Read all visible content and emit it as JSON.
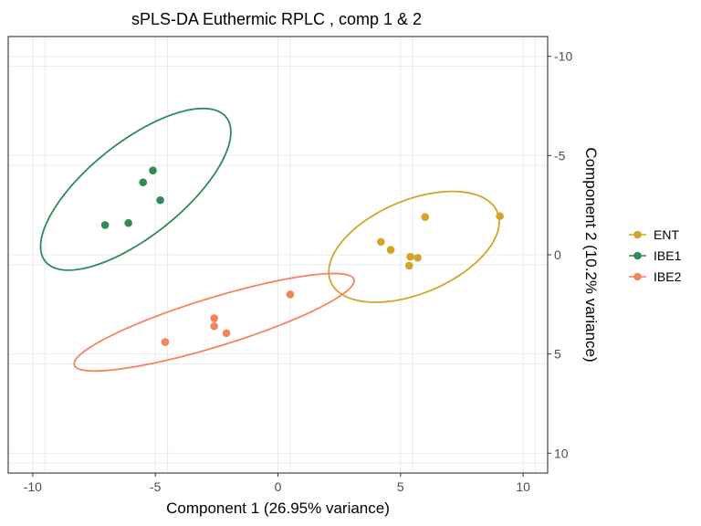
{
  "chart_data": {
    "type": "scatter",
    "title": "sPLS-DA Euthermic RPLC , comp 1 & 2",
    "xlabel": "Component 1 (26.95% variance)",
    "ylabel": "Component 2 (10.2% variance)",
    "xlim": [
      -11,
      11
    ],
    "ylim": [
      -11,
      11
    ],
    "y_reversed": true,
    "y_axis_side": "right",
    "x_ticks": [
      -10,
      -5,
      0,
      5,
      10
    ],
    "y_ticks": [
      -10,
      -5,
      0,
      5,
      10
    ],
    "x_tick_labels": [
      "-10",
      "-5",
      "0",
      "5",
      "10"
    ],
    "y_tick_labels": [
      "-10",
      "-5",
      "0",
      "5",
      "10"
    ],
    "grid": true,
    "legend_position": "right",
    "series": [
      {
        "name": "ENT",
        "color": "#D4A32A",
        "points": [
          {
            "x": 4.2,
            "y": -0.65
          },
          {
            "x": 4.6,
            "y": -0.25
          },
          {
            "x": 5.4,
            "y": 0.1
          },
          {
            "x": 5.7,
            "y": 0.15
          },
          {
            "x": 5.35,
            "y": 0.55
          },
          {
            "x": 6.0,
            "y": -1.9
          },
          {
            "x": 9.05,
            "y": -1.95
          }
        ],
        "ellipse": {
          "cx": 5.55,
          "cy": -0.4,
          "rx": 3.85,
          "ry": 2.25,
          "angle_deg": -32
        }
      },
      {
        "name": "IBE1",
        "color": "#2E8B57",
        "points": [
          {
            "x": -5.1,
            "y": -4.25
          },
          {
            "x": -5.5,
            "y": -3.65
          },
          {
            "x": -4.8,
            "y": -2.75
          },
          {
            "x": -6.1,
            "y": -1.6
          },
          {
            "x": -7.05,
            "y": -1.5
          }
        ],
        "ellipse": {
          "cx": -5.8,
          "cy": -3.3,
          "rx": 5.2,
          "ry": 2.15,
          "angle_deg": -47
        }
      },
      {
        "name": "IBE2",
        "color": "#F4845F",
        "points": [
          {
            "x": 0.5,
            "y": 2.0
          },
          {
            "x": -2.6,
            "y": 3.2
          },
          {
            "x": -2.6,
            "y": 3.6
          },
          {
            "x": -2.1,
            "y": 3.95
          },
          {
            "x": -4.6,
            "y": 4.4
          }
        ],
        "ellipse": {
          "cx": -2.6,
          "cy": 3.4,
          "rx": 6.1,
          "ry": 1.2,
          "angle_deg": -21
        }
      }
    ]
  }
}
